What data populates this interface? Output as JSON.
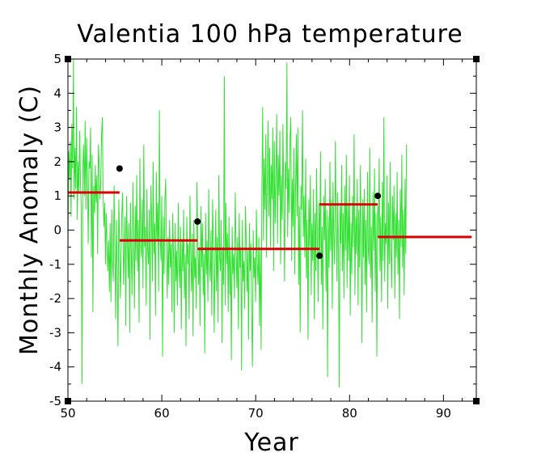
{
  "chart_data": {
    "type": "line",
    "title": "Valentia 100 hPa temperature",
    "xlabel": "Year",
    "ylabel": "Monthly Anomaly (C)",
    "xlim": [
      50,
      93.5
    ],
    "ylim": [
      -5,
      5
    ],
    "x_ticks": [
      50,
      60,
      70,
      80,
      90
    ],
    "y_ticks": [
      -5,
      -4,
      -3,
      -2,
      -1,
      0,
      1,
      2,
      3,
      4,
      5
    ],
    "grid": false,
    "legend": "none",
    "colors": {
      "series": "#33e033",
      "segments": "#dd0000",
      "points": "#000000"
    },
    "series": [
      {
        "style": "line",
        "x_start": 50.0,
        "x_step": 0.0833,
        "values": [
          -0.6,
          2.3,
          1.5,
          2.6,
          0.4,
          3.1,
          1.8,
          5.0,
          0.9,
          2.4,
          1.2,
          3.6,
          0.3,
          2.0,
          1.1,
          2.9,
          1.4,
          0.7,
          -4.5,
          1.8,
          2.5,
          1.0,
          3.2,
          0.6,
          2.7,
          1.5,
          -0.4,
          2.0,
          1.8,
          3.0,
          -0.8,
          2.2,
          -2.4,
          1.3,
          0.5,
          1.9,
          0.8,
          1.6,
          -0.7,
          2.5,
          1.9,
          0.9,
          1.4,
          2.8,
          3.3,
          1.0,
          0.1,
          0.8,
          -1.0,
          0.5,
          -0.5,
          -1.2,
          -0.3,
          -1.8,
          0.2,
          -2.1,
          0.6,
          -0.9,
          -1.5,
          1.3,
          -0.4,
          -2.6,
          0.3,
          -1.1,
          -3.4,
          0.9,
          -0.2,
          -2.0,
          -0.7,
          0.5,
          1.1,
          -1.6,
          -0.8,
          0.4,
          -2.8,
          1.0,
          -0.3,
          -1.4,
          0.2,
          -3.0,
          0.8,
          -0.6,
          -1.9,
          1.4,
          -0.1,
          -2.3,
          0.7,
          -0.9,
          1.6,
          -1.2,
          0.3,
          -2.7,
          2.1,
          -0.4,
          -0.8,
          0.9,
          -1.7,
          2.5,
          -0.5,
          0.1,
          -2.2,
          1.2,
          -0.6,
          -1.0,
          0.6,
          -3.2,
          1.3,
          0.4,
          -1.5,
          2.0,
          -0.7,
          0.2,
          -2.5,
          1.7,
          -0.3,
          0.8,
          -1.8,
          3.5,
          -0.2,
          -0.9,
          1.0,
          -3.7,
          0.4,
          -1.3,
          0.9,
          1.5,
          -0.5,
          -2.0,
          -0.2,
          -1.6,
          0.3,
          -1.1,
          -0.4,
          -2.4,
          0.5,
          -0.8,
          -3.0,
          0.2,
          -1.5,
          -0.6,
          -2.2,
          0.8,
          -0.9,
          -1.7,
          0.1,
          -2.9,
          -0.3,
          -1.2,
          0.6,
          -2.0,
          -0.7,
          -3.4,
          0.4,
          -1.0,
          -0.4,
          -2.6,
          1.0,
          -0.6,
          -1.8,
          -0.1,
          -3.1,
          0.3,
          -1.4,
          -0.8,
          -2.3,
          1.4,
          -0.2,
          -1.6,
          -0.5,
          -2.8,
          0.7,
          -1.1,
          0.2,
          -1.9,
          -0.7,
          -3.6,
          0.5,
          -1.3,
          -0.3,
          -2.1,
          1.2,
          -0.9,
          -1.5,
          0.0,
          -2.5,
          0.9,
          -0.4,
          -3.0,
          -1.0,
          0.6,
          -1.8,
          -0.2,
          -2.7,
          1.6,
          -0.8,
          -1.2,
          0.3,
          -3.3,
          -0.5,
          -1.6,
          4.5,
          -2.2,
          0.8,
          -1.0,
          -0.1,
          -2.4,
          0.4,
          -1.9,
          -0.6,
          -3.8,
          0.1,
          -1.3,
          -0.7,
          -2.0,
          1.1,
          -0.4,
          -1.7,
          -0.2,
          -2.9,
          0.5,
          -1.1,
          -0.5,
          -4.1,
          0.3,
          -1.5,
          -0.9,
          -2.3,
          0.7,
          -0.3,
          -1.8,
          -0.6,
          -3.2,
          0.2,
          -1.2,
          -0.4,
          -2.6,
          -4.0,
          0.0,
          -1.4,
          -0.8,
          -2.1,
          0.6,
          -0.9,
          -1.6,
          -0.2,
          -2.8,
          -0.5,
          -3.5,
          1.0,
          3.6,
          -0.3,
          2.1,
          0.6,
          2.8,
          -0.8,
          1.7,
          3.2,
          0.4,
          2.4,
          -0.5,
          1.9,
          0.9,
          3.0,
          -1.2,
          2.6,
          0.2,
          1.4,
          3.4,
          -0.4,
          2.2,
          1.0,
          2.9,
          -1.0,
          1.6,
          0.3,
          3.1,
          0.8,
          -1.5,
          2.0,
          1.2,
          4.9,
          -0.2,
          1.8,
          0.5,
          2.7,
          3.3,
          -0.9,
          1.5,
          0.1,
          2.4,
          -1.3,
          1.1,
          2.8,
          0.4,
          3.0,
          -1.6,
          0.7,
          -3.0,
          1.3,
          0.6,
          3.5,
          -0.2,
          1.0,
          -0.8,
          2.1,
          -1.4,
          0.3,
          -3.2,
          0.9,
          -0.5,
          1.6,
          -1.9,
          0.2,
          -0.9,
          1.2,
          -2.6,
          0.5,
          -1.2,
          1.8,
          -0.4,
          -2.1,
          0.8,
          -0.7,
          2.3,
          -1.6,
          0.1,
          -2.9,
          1.0,
          -0.3,
          1.5,
          -1.8,
          0.6,
          -4.3,
          0.4,
          -1.1,
          2.0,
          -0.6,
          0.9,
          -2.3,
          1.4,
          -0.2,
          -1.0,
          2.6,
          0.3,
          -1.5,
          1.1,
          -0.8,
          -4.6,
          0.7,
          -0.4,
          1.9,
          -1.2,
          0.5,
          -2.0,
          1.3,
          -0.6,
          2.2,
          -1.7,
          0.8,
          -0.9,
          1.6,
          -2.5,
          0.2,
          -1.3,
          1.0,
          -0.5,
          2.8,
          -1.9,
          0.4,
          -0.7,
          1.5,
          -2.2,
          0.6,
          -1.1,
          1.9,
          -0.3,
          -3.3,
          0.9,
          -0.8,
          1.2,
          -1.6,
          0.3,
          -2.4,
          1.7,
          -0.5,
          -1.0,
          2.4,
          -1.4,
          0.1,
          -2.7,
          1.1,
          -0.6,
          1.8,
          -1.8,
          0.5,
          -3.7,
          0.7,
          -0.2,
          2.1,
          -1.2,
          0.4,
          -2.1,
          1.4,
          -0.9,
          3.3,
          -1.5,
          0.2,
          -0.4,
          1.6,
          -2.3,
          0.8,
          -1.0,
          2.0,
          -0.6,
          -1.7,
          1.0,
          -0.3,
          1.3,
          -2.0,
          0.5,
          -0.8,
          1.7,
          -1.3,
          0.3,
          -2.6,
          1.2,
          -0.5,
          2.2,
          -1.1,
          0.6,
          -1.9,
          1.5,
          -0.7,
          2.5
        ]
      },
      {
        "style": "step",
        "segments": [
          {
            "x0": 50.0,
            "x1": 55.5,
            "y": 1.1
          },
          {
            "x0": 55.5,
            "x1": 63.8,
            "y": -0.3
          },
          {
            "x0": 63.8,
            "x1": 76.8,
            "y": -0.55
          },
          {
            "x0": 76.8,
            "x1": 83.0,
            "y": 0.75
          },
          {
            "x0": 83.0,
            "x1": 93.0,
            "y": -0.2
          }
        ]
      },
      {
        "style": "points",
        "x": [
          55.5,
          63.8,
          76.8,
          83.0
        ],
        "y": [
          1.8,
          0.25,
          -0.75,
          1.0
        ]
      }
    ]
  }
}
